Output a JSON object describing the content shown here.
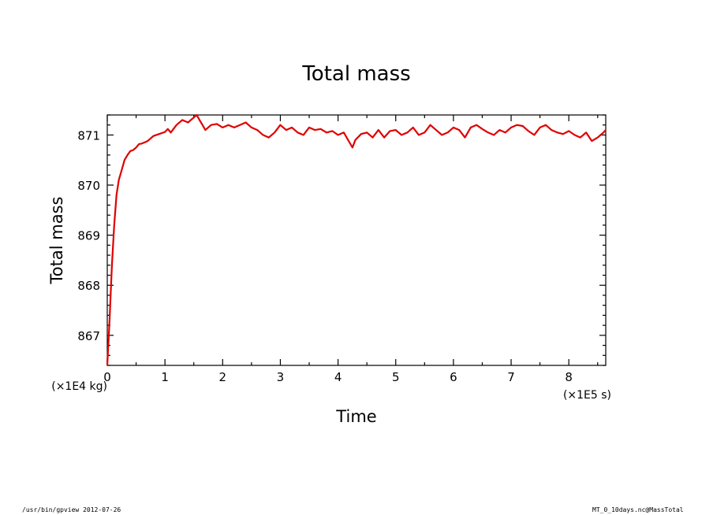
{
  "chart_data": {
    "type": "line",
    "title": "Total mass",
    "xlabel": "Time",
    "ylabel": "Total mass",
    "x_unit_label": "(×1E5 s)",
    "y_unit_label": "(×1E4 kg)",
    "xlim": [
      0,
      8.64
    ],
    "ylim": [
      866.4,
      871.4
    ],
    "x_ticks": [
      "0",
      "1",
      "2",
      "3",
      "4",
      "5",
      "6",
      "7",
      "8"
    ],
    "y_ticks": [
      "867",
      "868",
      "869",
      "870",
      "871"
    ],
    "grid": false,
    "line_color": "#e00000",
    "series": [
      {
        "x": [
          0,
          0.04,
          0.08,
          0.12,
          0.16,
          0.2,
          0.25,
          0.3,
          0.35,
          0.4,
          0.45,
          0.5,
          0.55,
          0.6,
          0.7,
          0.8,
          0.9,
          1.0,
          1.05,
          1.1,
          1.2,
          1.3,
          1.4,
          1.5,
          1.55,
          1.6,
          1.7,
          1.8,
          1.9,
          2.0,
          2.1,
          2.2,
          2.3,
          2.4,
          2.5,
          2.6,
          2.7,
          2.8,
          2.9,
          3.0,
          3.1,
          3.2,
          3.3,
          3.4,
          3.5,
          3.6,
          3.7,
          3.8,
          3.9,
          4.0,
          4.1,
          4.2,
          4.25,
          4.3,
          4.4,
          4.5,
          4.6,
          4.7,
          4.8,
          4.9,
          5.0,
          5.1,
          5.2,
          5.3,
          5.4,
          5.5,
          5.6,
          5.7,
          5.8,
          5.9,
          6.0,
          6.1,
          6.2,
          6.3,
          6.4,
          6.5,
          6.6,
          6.7,
          6.8,
          6.9,
          7.0,
          7.1,
          7.2,
          7.3,
          7.4,
          7.5,
          7.6,
          7.7,
          7.8,
          7.9,
          8.0,
          8.1,
          8.2,
          8.3,
          8.4,
          8.5,
          8.6,
          8.64
        ],
        "y": [
          866.4,
          867.3,
          868.4,
          869.2,
          869.8,
          870.1,
          870.3,
          870.5,
          870.6,
          870.68,
          870.7,
          870.75,
          870.82,
          870.83,
          870.88,
          870.98,
          871.02,
          871.06,
          871.12,
          871.05,
          871.2,
          871.3,
          871.25,
          871.35,
          871.4,
          871.3,
          871.1,
          871.2,
          871.22,
          871.15,
          871.2,
          871.15,
          871.2,
          871.25,
          871.15,
          871.1,
          871.0,
          870.95,
          871.05,
          871.2,
          871.1,
          871.15,
          871.05,
          871.0,
          871.15,
          871.1,
          871.12,
          871.05,
          871.08,
          871.0,
          871.05,
          870.85,
          870.75,
          870.9,
          871.02,
          871.05,
          870.95,
          871.1,
          870.95,
          871.08,
          871.1,
          871.0,
          871.05,
          871.15,
          871.0,
          871.05,
          871.2,
          871.1,
          871.0,
          871.05,
          871.15,
          871.1,
          870.95,
          871.15,
          871.2,
          871.12,
          871.05,
          871.0,
          871.1,
          871.05,
          871.15,
          871.2,
          871.18,
          871.08,
          871.0,
          871.15,
          871.2,
          871.1,
          871.05,
          871.02,
          871.08,
          871.0,
          870.95,
          871.05,
          870.88,
          870.95,
          871.05,
          871.1
        ]
      }
    ]
  },
  "footer": {
    "left": "/usr/bin/gpview  2012-07-26",
    "right": "MT_0_10days.nc@MassTotal"
  }
}
